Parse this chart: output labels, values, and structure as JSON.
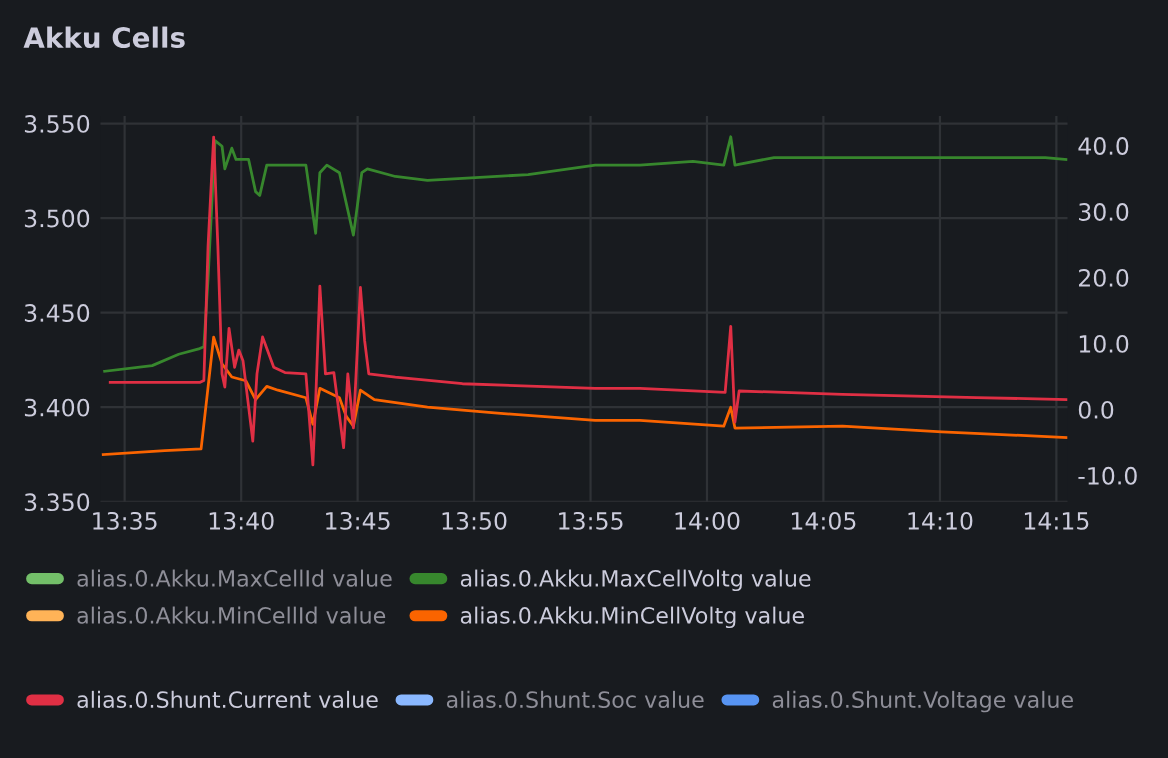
{
  "chart_data": {
    "type": "line",
    "title": "Akku Cells",
    "xlim": [
      13.566,
      14.258
    ],
    "xticks": [
      {
        "value": 13.5833,
        "label": "13:35"
      },
      {
        "value": 13.6667,
        "label": "13:40"
      },
      {
        "value": 13.75,
        "label": "13:45"
      },
      {
        "value": 13.8333,
        "label": "13:50"
      },
      {
        "value": 13.9167,
        "label": "13:55"
      },
      {
        "value": 14.0,
        "label": "14:00"
      },
      {
        "value": 14.0833,
        "label": "14:05"
      },
      {
        "value": 14.1667,
        "label": "14:10"
      },
      {
        "value": 14.25,
        "label": "14:15"
      }
    ],
    "ylim": [
      3.35,
      3.554
    ],
    "yticks": [
      {
        "value": 3.35,
        "label": "3.350"
      },
      {
        "value": 3.4,
        "label": "3.400"
      },
      {
        "value": 3.45,
        "label": "3.450"
      },
      {
        "value": 3.5,
        "label": "3.500"
      },
      {
        "value": 3.55,
        "label": "3.550"
      }
    ],
    "y2lim": [
      -14.0,
      44.5
    ],
    "y2ticks": [
      {
        "value": -10,
        "label": "-10.0"
      },
      {
        "value": 0,
        "label": "0.0"
      },
      {
        "value": 10,
        "label": "10.0"
      },
      {
        "value": 20,
        "label": "20.0"
      },
      {
        "value": 30,
        "label": "30.0"
      },
      {
        "value": 40,
        "label": "40.0"
      }
    ],
    "grid": true,
    "legend": "bottom",
    "marker": "none",
    "line_style": "solid",
    "series": [
      {
        "name": "alias.0.Akku.MaxCellId value",
        "color": "#73bf69"
      },
      {
        "name": "alias.0.Akku.MaxCellVoltg value",
        "color": "#37872d",
        "x": [
          13.569,
          13.603,
          13.622,
          13.637,
          13.64,
          13.643,
          13.648,
          13.653,
          13.655,
          13.66,
          13.663,
          13.672,
          13.677,
          13.68,
          13.685,
          13.693,
          13.713,
          13.72,
          13.723,
          13.728,
          13.737,
          13.747,
          13.753,
          13.757,
          13.777,
          13.8,
          13.825,
          13.872,
          13.92,
          13.952,
          13.99,
          14.012,
          14.017,
          14.02,
          14.048,
          14.097,
          14.145,
          14.193,
          14.242,
          14.257
        ],
        "values": [
          3.419,
          3.422,
          3.428,
          3.431,
          3.432,
          3.468,
          3.541,
          3.538,
          3.526,
          3.537,
          3.531,
          3.531,
          3.514,
          3.512,
          3.528,
          3.528,
          3.528,
          3.492,
          3.524,
          3.528,
          3.524,
          3.491,
          3.524,
          3.526,
          3.522,
          3.52,
          3.521,
          3.523,
          3.528,
          3.528,
          3.53,
          3.528,
          3.543,
          3.528,
          3.532,
          3.532,
          3.532,
          3.532,
          3.532,
          3.531
        ]
      },
      {
        "name": "alias.0.Akku.MinCellId value",
        "color": "#ffb357"
      },
      {
        "name": "alias.0.Akku.MinCellVoltg value",
        "color": "#fa6400",
        "x": [
          13.568,
          13.612,
          13.638,
          13.642,
          13.647,
          13.653,
          13.66,
          13.67,
          13.677,
          13.685,
          13.693,
          13.713,
          13.718,
          13.723,
          13.737,
          13.742,
          13.747,
          13.752,
          13.762,
          13.8,
          13.848,
          13.92,
          13.952,
          14.012,
          14.017,
          14.02,
          14.097,
          14.168,
          14.257
        ],
        "values": [
          3.375,
          3.377,
          3.378,
          3.404,
          3.437,
          3.423,
          3.416,
          3.414,
          3.404,
          3.411,
          3.409,
          3.405,
          3.391,
          3.41,
          3.405,
          3.395,
          3.39,
          3.409,
          3.404,
          3.4,
          3.397,
          3.393,
          3.393,
          3.39,
          3.4,
          3.389,
          3.39,
          3.387,
          3.384
        ]
      },
      {
        "name": "alias.0.Shunt.Current value",
        "color": "#e02f44",
        "axis": "y2",
        "x": [
          13.573,
          13.637,
          13.64,
          13.643,
          13.647,
          13.65,
          13.653,
          13.655,
          13.658,
          13.662,
          13.665,
          13.668,
          13.675,
          13.678,
          13.682,
          13.69,
          13.698,
          13.713,
          13.718,
          13.72,
          13.723,
          13.727,
          13.733,
          13.74,
          13.743,
          13.747,
          13.752,
          13.755,
          13.758,
          13.777,
          13.825,
          13.92,
          13.952,
          14.013,
          14.017,
          14.02,
          14.023,
          14.097,
          14.193,
          14.257
        ],
        "values": [
          4.1,
          4.1,
          4.4,
          24.8,
          41.3,
          24.8,
          5.4,
          3.4,
          12.3,
          6.4,
          9.0,
          7.4,
          -4.8,
          5.4,
          11.0,
          6.4,
          5.6,
          5.4,
          -8.4,
          1.3,
          18.7,
          5.4,
          5.6,
          -5.8,
          5.4,
          -2.8,
          18.5,
          10.5,
          5.4,
          4.9,
          3.9,
          3.2,
          3.2,
          2.6,
          12.6,
          -1.9,
          2.8,
          2.3,
          1.8,
          1.5
        ]
      },
      {
        "name": "alias.0.Shunt.Soc value",
        "color": "#8ab8ff"
      },
      {
        "name": "alias.0.Shunt.Voltage value",
        "color": "#5794f2"
      }
    ]
  }
}
